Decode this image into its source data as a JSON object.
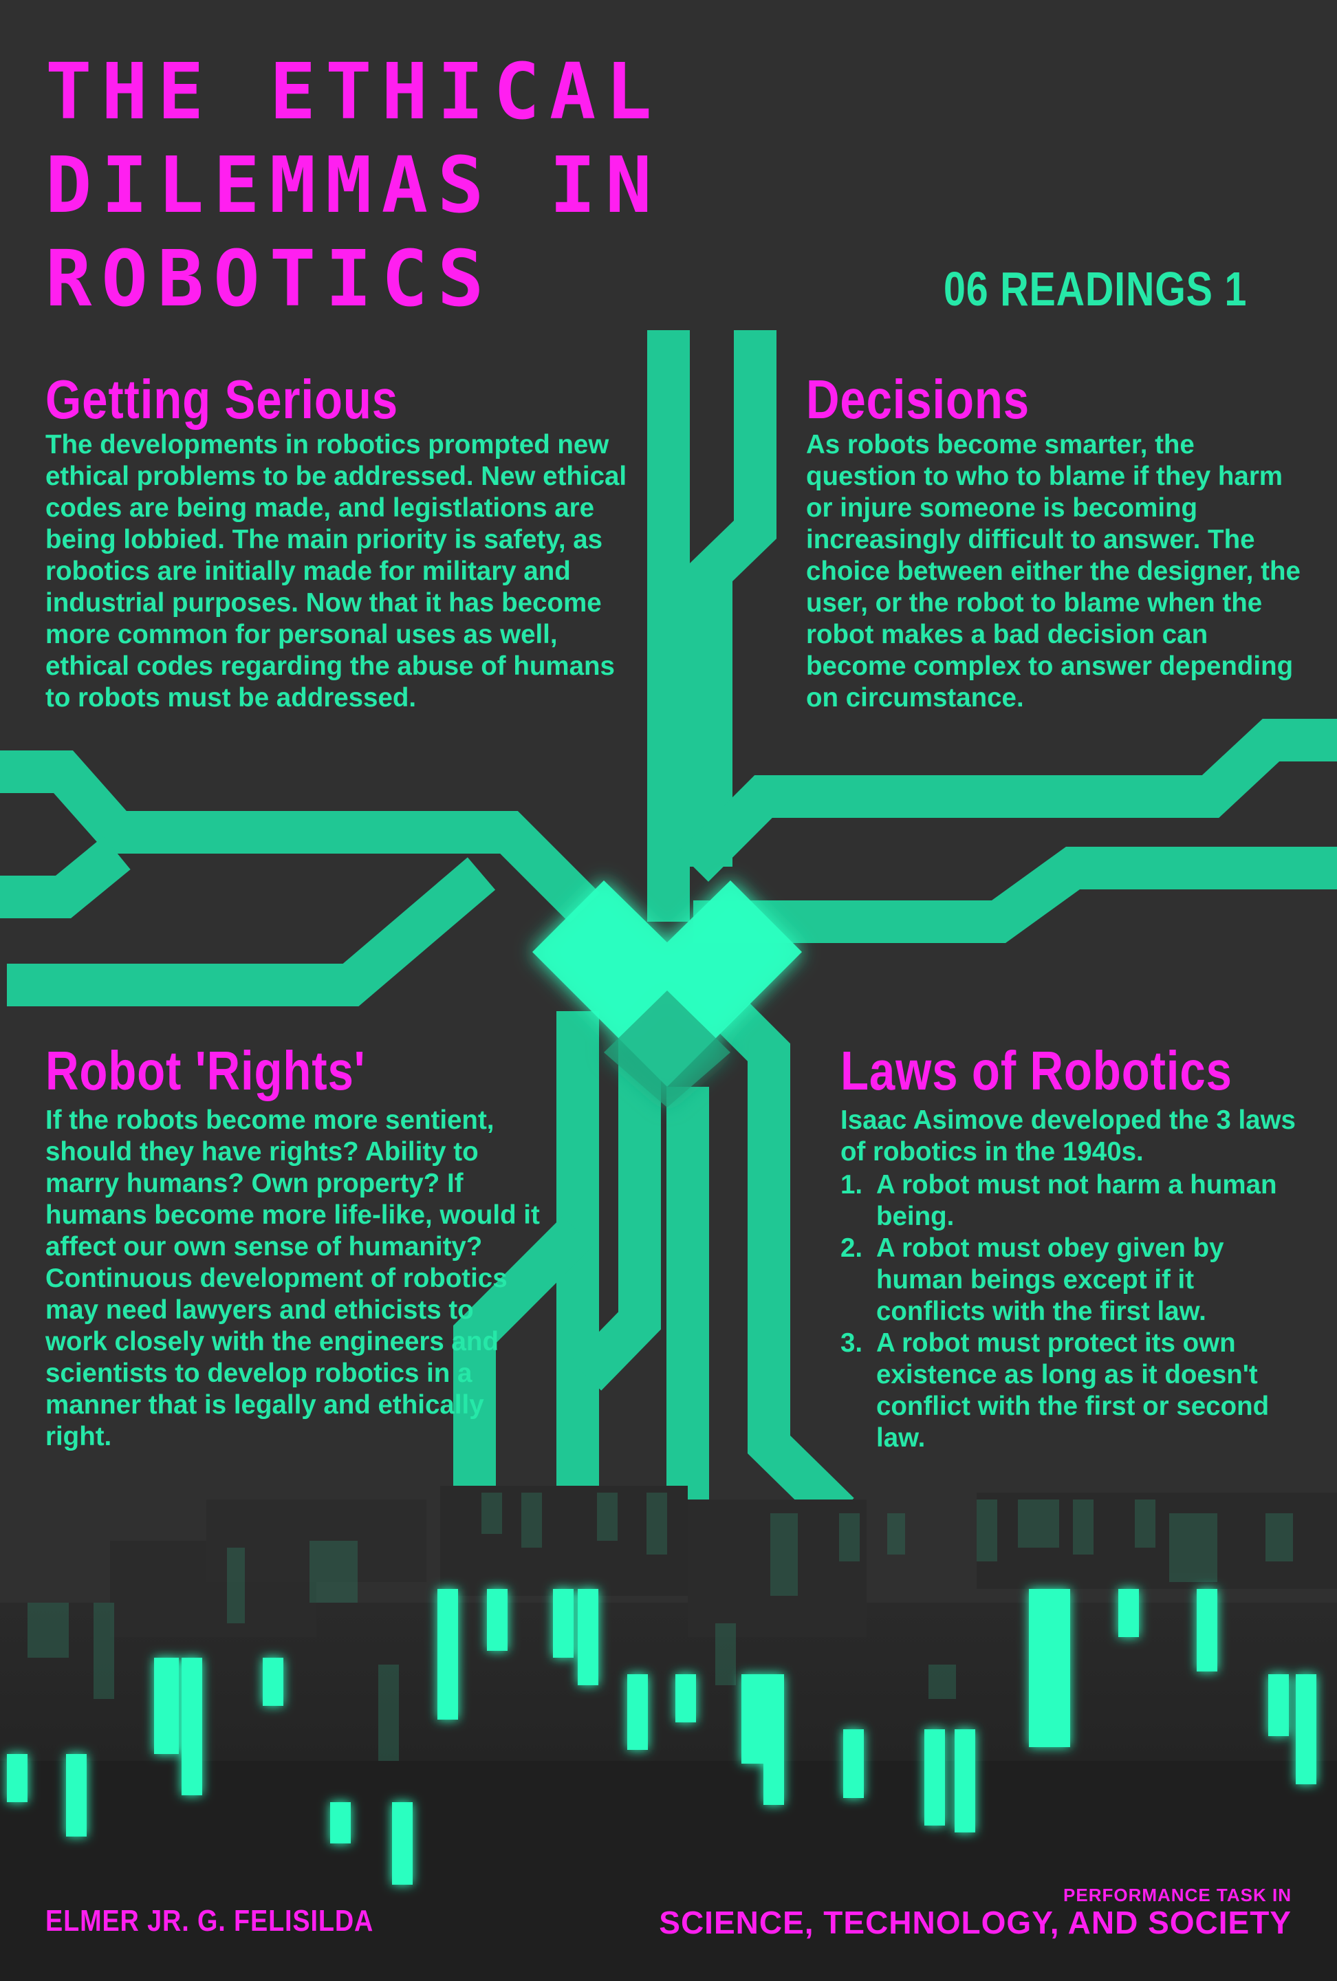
{
  "colors": {
    "background": "#303030",
    "magenta": "#ff1ff0",
    "green": "#26e8a8",
    "trace": "#20c794",
    "heart": "#2cffc0"
  },
  "title": {
    "line1": "THE ETHICAL",
    "line2": "DILEMMAS IN",
    "line3": "ROBOTICS"
  },
  "readings_label": "06 READINGS 1",
  "sections": {
    "getting_serious": {
      "heading": "Getting Serious",
      "text": "The developments in robotics prompted new ethical problems to be addressed. New ethical codes are being made, and legistlations are being lobbied. The main priority is safety, as robotics are initially made for military and industrial purposes. Now that it has become more common for personal uses as well, ethical codes regarding the abuse of humans to robots must be addressed."
    },
    "decisions": {
      "heading": "Decisions",
      "text": "As robots become smarter, the question to who to blame if they harm or injure someone is becoming increasingly difficult to answer. The choice between either the designer, the user, or the robot to blame when the robot makes a bad decision can become complex to answer depending on circumstance."
    },
    "robot_rights": {
      "heading": "Robot 'Rights'",
      "text": "If the robots become more sentient, should they have rights? Ability to marry humans? Own property? If humans become more life-like, would it affect our own sense of humanity? Continuous development of robotics may need lawyers and ethicists to work closely with the engineers and scientists to develop robotics in a manner that is legally and ethically right."
    },
    "laws": {
      "heading": "Laws of Robotics",
      "intro": "Isaac Asimove developed the 3 laws of robotics in the 1940s.",
      "items": [
        {
          "num": "1.",
          "text": "A robot must not harm a human being."
        },
        {
          "num": "2.",
          "text": "A robot must obey given by human beings except if it conflicts with the first law."
        },
        {
          "num": "3.",
          "text": "A robot must protect its own existence as long as it doesn't conflict with the first or second law."
        }
      ]
    }
  },
  "footer": {
    "author": "ELMER JR. G. FELISILDA",
    "task": "PERFORMANCE TASK IN",
    "course": "SCIENCE, TECHNOLOGY, AND SOCIETY"
  }
}
